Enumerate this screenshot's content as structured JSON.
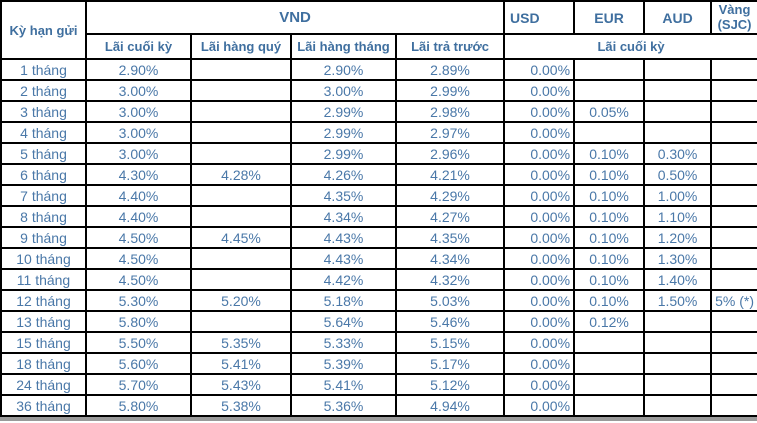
{
  "colors": {
    "header_text": "#3f6f9f",
    "cell_text": "#4a78a8",
    "border": "#000000",
    "background": "#ffffff",
    "bottom_strip": "#9a9a9a"
  },
  "table": {
    "header": {
      "term": "Kỳ hạn gửi",
      "vnd_group": "VND",
      "usd": "USD",
      "eur": "EUR",
      "aud": "AUD",
      "gold": "Vàng (SJC)",
      "sub_end_of_term": "Lãi cuối kỳ",
      "sub_quarterly": "Lãi hàng quý",
      "sub_monthly": "Lãi hàng tháng",
      "sub_prepaid": "Lãi trả trước",
      "foreign_span": "Lãi cuối kỳ"
    },
    "columns": [
      "term",
      "vnd-cuoi-ky",
      "vnd-hang-quy",
      "vnd-hang-thang",
      "vnd-tra-truoc",
      "usd",
      "eur",
      "aud",
      "vang-sjc"
    ],
    "rows": [
      [
        "1 tháng",
        "2.90%",
        "",
        "2.90%",
        "2.89%",
        "0.00%",
        "",
        "",
        ""
      ],
      [
        "2 tháng",
        "3.00%",
        "",
        "3.00%",
        "2.99%",
        "0.00%",
        "",
        "",
        ""
      ],
      [
        "3 tháng",
        "3.00%",
        "",
        "2.99%",
        "2.98%",
        "0.00%",
        "0.05%",
        "",
        ""
      ],
      [
        "4 tháng",
        "3.00%",
        "",
        "2.99%",
        "2.97%",
        "0.00%",
        "",
        "",
        ""
      ],
      [
        "5 tháng",
        "3.00%",
        "",
        "2.99%",
        "2.96%",
        "0.00%",
        "0.10%",
        "0.30%",
        ""
      ],
      [
        "6 tháng",
        "4.30%",
        "4.28%",
        "4.26%",
        "4.21%",
        "0.00%",
        "0.10%",
        "0.50%",
        ""
      ],
      [
        "7 tháng",
        "4.40%",
        "",
        "4.35%",
        "4.29%",
        "0.00%",
        "0.10%",
        "1.00%",
        ""
      ],
      [
        "8 tháng",
        "4.40%",
        "",
        "4.34%",
        "4.27%",
        "0.00%",
        "0.10%",
        "1.10%",
        ""
      ],
      [
        "9 tháng",
        "4.50%",
        "4.45%",
        "4.43%",
        "4.35%",
        "0.00%",
        "0.10%",
        "1.20%",
        ""
      ],
      [
        "10 tháng",
        "4.50%",
        "",
        "4.43%",
        "4.34%",
        "0.00%",
        "0.10%",
        "1.30%",
        ""
      ],
      [
        "11 tháng",
        "4.50%",
        "",
        "4.42%",
        "4.32%",
        "0.00%",
        "0.10%",
        "1.40%",
        ""
      ],
      [
        "12 tháng",
        "5.30%",
        "5.20%",
        "5.18%",
        "5.03%",
        "0.00%",
        "0.10%",
        "1.50%",
        "5% (*)"
      ],
      [
        "13 tháng",
        "5.80%",
        "",
        "5.64%",
        "5.46%",
        "0.00%",
        "0.12%",
        "",
        ""
      ],
      [
        "15 tháng",
        "5.50%",
        "5.35%",
        "5.33%",
        "5.15%",
        "0.00%",
        "",
        "",
        ""
      ],
      [
        "18 tháng",
        "5.60%",
        "5.41%",
        "5.39%",
        "5.17%",
        "0.00%",
        "",
        "",
        ""
      ],
      [
        "24 tháng",
        "5.70%",
        "5.43%",
        "5.41%",
        "5.12%",
        "0.00%",
        "",
        "",
        ""
      ],
      [
        "36 tháng",
        "5.80%",
        "5.38%",
        "5.36%",
        "4.94%",
        "0.00%",
        "",
        "",
        ""
      ]
    ]
  }
}
